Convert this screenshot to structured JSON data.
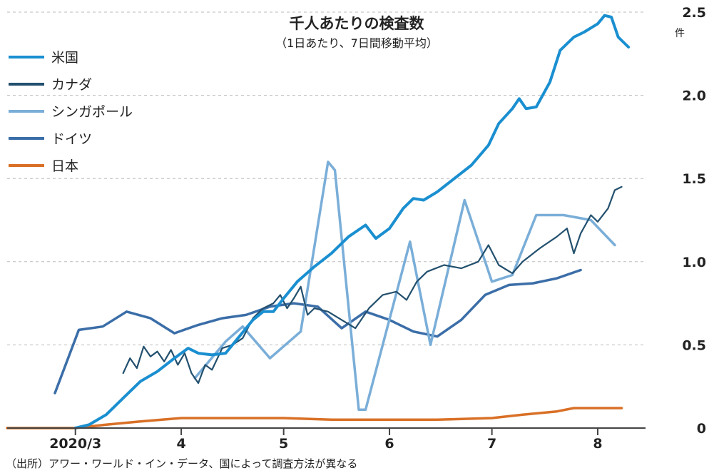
{
  "chart_data": {
    "type": "line",
    "title": "千人あたりの検査数",
    "subtitle": "（1日あたり、7日間移動平均）",
    "ylabel": "件",
    "ylim": [
      0,
      2.5
    ],
    "yticks": [
      "0",
      "0.5",
      "1.0",
      "1.5",
      "2.0",
      "2.5"
    ],
    "ytick_values": [
      0,
      0.5,
      1.0,
      1.5,
      2.0,
      2.5
    ],
    "xlim": [
      "2020-02-10",
      "2020-08-15"
    ],
    "xticks": [
      {
        "label": "2020/3",
        "date": "2020-03-01"
      },
      {
        "label": "4",
        "date": "2020-04-01"
      },
      {
        "label": "5",
        "date": "2020-05-01"
      },
      {
        "label": "6",
        "date": "2020-06-01"
      },
      {
        "label": "7",
        "date": "2020-07-01"
      },
      {
        "label": "8",
        "date": "2020-08-01"
      }
    ],
    "grid": "horizontal-dashed",
    "legend_position": "top-left",
    "source": "（出所）アワー・ワールド・イン・データ、国によって調査方法が異なる",
    "series": [
      {
        "name": "米国",
        "color": "#1a8fd0",
        "width": 4,
        "points": [
          [
            "2020-03-01",
            0.0
          ],
          [
            "2020-03-05",
            0.02
          ],
          [
            "2020-03-10",
            0.08
          ],
          [
            "2020-03-15",
            0.18
          ],
          [
            "2020-03-20",
            0.28
          ],
          [
            "2020-03-25",
            0.34
          ],
          [
            "2020-03-30",
            0.42
          ],
          [
            "2020-04-03",
            0.48
          ],
          [
            "2020-04-06",
            0.45
          ],
          [
            "2020-04-10",
            0.44
          ],
          [
            "2020-04-14",
            0.45
          ],
          [
            "2020-04-18",
            0.55
          ],
          [
            "2020-04-22",
            0.65
          ],
          [
            "2020-04-25",
            0.7
          ],
          [
            "2020-04-28",
            0.7
          ],
          [
            "2020-05-01",
            0.78
          ],
          [
            "2020-05-05",
            0.88
          ],
          [
            "2020-05-10",
            0.97
          ],
          [
            "2020-05-15",
            1.05
          ],
          [
            "2020-05-20",
            1.15
          ],
          [
            "2020-05-25",
            1.22
          ],
          [
            "2020-05-28",
            1.14
          ],
          [
            "2020-06-01",
            1.2
          ],
          [
            "2020-06-05",
            1.32
          ],
          [
            "2020-06-08",
            1.38
          ],
          [
            "2020-06-11",
            1.37
          ],
          [
            "2020-06-15",
            1.42
          ],
          [
            "2020-06-20",
            1.5
          ],
          [
            "2020-06-25",
            1.58
          ],
          [
            "2020-06-30",
            1.7
          ],
          [
            "2020-07-03",
            1.83
          ],
          [
            "2020-07-07",
            1.92
          ],
          [
            "2020-07-09",
            1.98
          ],
          [
            "2020-07-11",
            1.92
          ],
          [
            "2020-07-14",
            1.93
          ],
          [
            "2020-07-18",
            2.08
          ],
          [
            "2020-07-21",
            2.27
          ],
          [
            "2020-07-25",
            2.35
          ],
          [
            "2020-07-28",
            2.38
          ],
          [
            "2020-08-01",
            2.43
          ],
          [
            "2020-08-03",
            2.48
          ],
          [
            "2020-08-05",
            2.47
          ],
          [
            "2020-08-07",
            2.35
          ],
          [
            "2020-08-10",
            2.29
          ]
        ]
      },
      {
        "name": "カナダ",
        "color": "#23506e",
        "width": 2.2,
        "points": [
          [
            "2020-03-15",
            0.33
          ],
          [
            "2020-03-17",
            0.42
          ],
          [
            "2020-03-19",
            0.36
          ],
          [
            "2020-03-21",
            0.49
          ],
          [
            "2020-03-23",
            0.43
          ],
          [
            "2020-03-25",
            0.46
          ],
          [
            "2020-03-27",
            0.4
          ],
          [
            "2020-03-29",
            0.47
          ],
          [
            "2020-03-31",
            0.38
          ],
          [
            "2020-04-02",
            0.45
          ],
          [
            "2020-04-04",
            0.33
          ],
          [
            "2020-04-06",
            0.27
          ],
          [
            "2020-04-08",
            0.38
          ],
          [
            "2020-04-10",
            0.35
          ],
          [
            "2020-04-13",
            0.48
          ],
          [
            "2020-04-16",
            0.5
          ],
          [
            "2020-04-19",
            0.54
          ],
          [
            "2020-04-22",
            0.66
          ],
          [
            "2020-04-25",
            0.72
          ],
          [
            "2020-04-28",
            0.75
          ],
          [
            "2020-04-30",
            0.8
          ],
          [
            "2020-05-02",
            0.72
          ],
          [
            "2020-05-04",
            0.78
          ],
          [
            "2020-05-06",
            0.85
          ],
          [
            "2020-05-08",
            0.68
          ],
          [
            "2020-05-10",
            0.72
          ],
          [
            "2020-05-14",
            0.7
          ],
          [
            "2020-05-18",
            0.65
          ],
          [
            "2020-05-22",
            0.6
          ],
          [
            "2020-05-26",
            0.72
          ],
          [
            "2020-05-30",
            0.8
          ],
          [
            "2020-06-03",
            0.82
          ],
          [
            "2020-06-06",
            0.77
          ],
          [
            "2020-06-09",
            0.88
          ],
          [
            "2020-06-12",
            0.94
          ],
          [
            "2020-06-17",
            0.98
          ],
          [
            "2020-06-22",
            0.96
          ],
          [
            "2020-06-27",
            1.0
          ],
          [
            "2020-06-30",
            1.1
          ],
          [
            "2020-07-03",
            0.98
          ],
          [
            "2020-07-07",
            0.93
          ],
          [
            "2020-07-10",
            1.0
          ],
          [
            "2020-07-15",
            1.08
          ],
          [
            "2020-07-20",
            1.15
          ],
          [
            "2020-07-23",
            1.2
          ],
          [
            "2020-07-25",
            1.05
          ],
          [
            "2020-07-27",
            1.17
          ],
          [
            "2020-07-30",
            1.28
          ],
          [
            "2020-08-01",
            1.24
          ],
          [
            "2020-08-04",
            1.32
          ],
          [
            "2020-08-06",
            1.43
          ],
          [
            "2020-08-08",
            1.45
          ]
        ]
      },
      {
        "name": "シンガポール",
        "color": "#7aaed8",
        "width": 3.5,
        "points": [
          [
            "2020-04-05",
            0.3
          ],
          [
            "2020-04-14",
            0.52
          ],
          [
            "2020-04-19",
            0.61
          ],
          [
            "2020-04-27",
            0.42
          ],
          [
            "2020-05-06",
            0.58
          ],
          [
            "2020-05-14",
            1.6
          ],
          [
            "2020-05-16",
            1.55
          ],
          [
            "2020-05-23",
            0.11
          ],
          [
            "2020-05-25",
            0.11
          ],
          [
            "2020-06-07",
            1.12
          ],
          [
            "2020-06-13",
            0.5
          ],
          [
            "2020-06-23",
            1.37
          ],
          [
            "2020-07-01",
            0.88
          ],
          [
            "2020-07-07",
            0.92
          ],
          [
            "2020-07-14",
            1.28
          ],
          [
            "2020-07-22",
            1.28
          ],
          [
            "2020-07-30",
            1.25
          ],
          [
            "2020-08-06",
            1.1
          ]
        ]
      },
      {
        "name": "ドイツ",
        "color": "#3b6ea8",
        "width": 3.5,
        "points": [
          [
            "2020-02-24",
            0.21
          ],
          [
            "2020-03-02",
            0.59
          ],
          [
            "2020-03-09",
            0.61
          ],
          [
            "2020-03-16",
            0.7
          ],
          [
            "2020-03-23",
            0.66
          ],
          [
            "2020-03-30",
            0.57
          ],
          [
            "2020-04-06",
            0.62
          ],
          [
            "2020-04-13",
            0.66
          ],
          [
            "2020-04-20",
            0.68
          ],
          [
            "2020-04-27",
            0.73
          ],
          [
            "2020-05-04",
            0.75
          ],
          [
            "2020-05-11",
            0.73
          ],
          [
            "2020-05-18",
            0.6
          ],
          [
            "2020-05-25",
            0.7
          ],
          [
            "2020-06-01",
            0.65
          ],
          [
            "2020-06-08",
            0.58
          ],
          [
            "2020-06-15",
            0.55
          ],
          [
            "2020-06-22",
            0.65
          ],
          [
            "2020-06-29",
            0.8
          ],
          [
            "2020-07-06",
            0.86
          ],
          [
            "2020-07-13",
            0.87
          ],
          [
            "2020-07-20",
            0.9
          ],
          [
            "2020-07-27",
            0.95
          ]
        ]
      },
      {
        "name": "日本",
        "color": "#d97026",
        "width": 3.5,
        "points": [
          [
            "2020-02-10",
            0.0
          ],
          [
            "2020-03-01",
            0.0
          ],
          [
            "2020-03-10",
            0.02
          ],
          [
            "2020-03-20",
            0.04
          ],
          [
            "2020-04-01",
            0.06
          ],
          [
            "2020-04-10",
            0.06
          ],
          [
            "2020-04-20",
            0.06
          ],
          [
            "2020-05-01",
            0.06
          ],
          [
            "2020-05-15",
            0.05
          ],
          [
            "2020-06-01",
            0.05
          ],
          [
            "2020-06-15",
            0.05
          ],
          [
            "2020-07-01",
            0.06
          ],
          [
            "2020-07-10",
            0.08
          ],
          [
            "2020-07-20",
            0.1
          ],
          [
            "2020-07-25",
            0.12
          ],
          [
            "2020-08-01",
            0.12
          ],
          [
            "2020-08-08",
            0.12
          ]
        ]
      }
    ]
  }
}
